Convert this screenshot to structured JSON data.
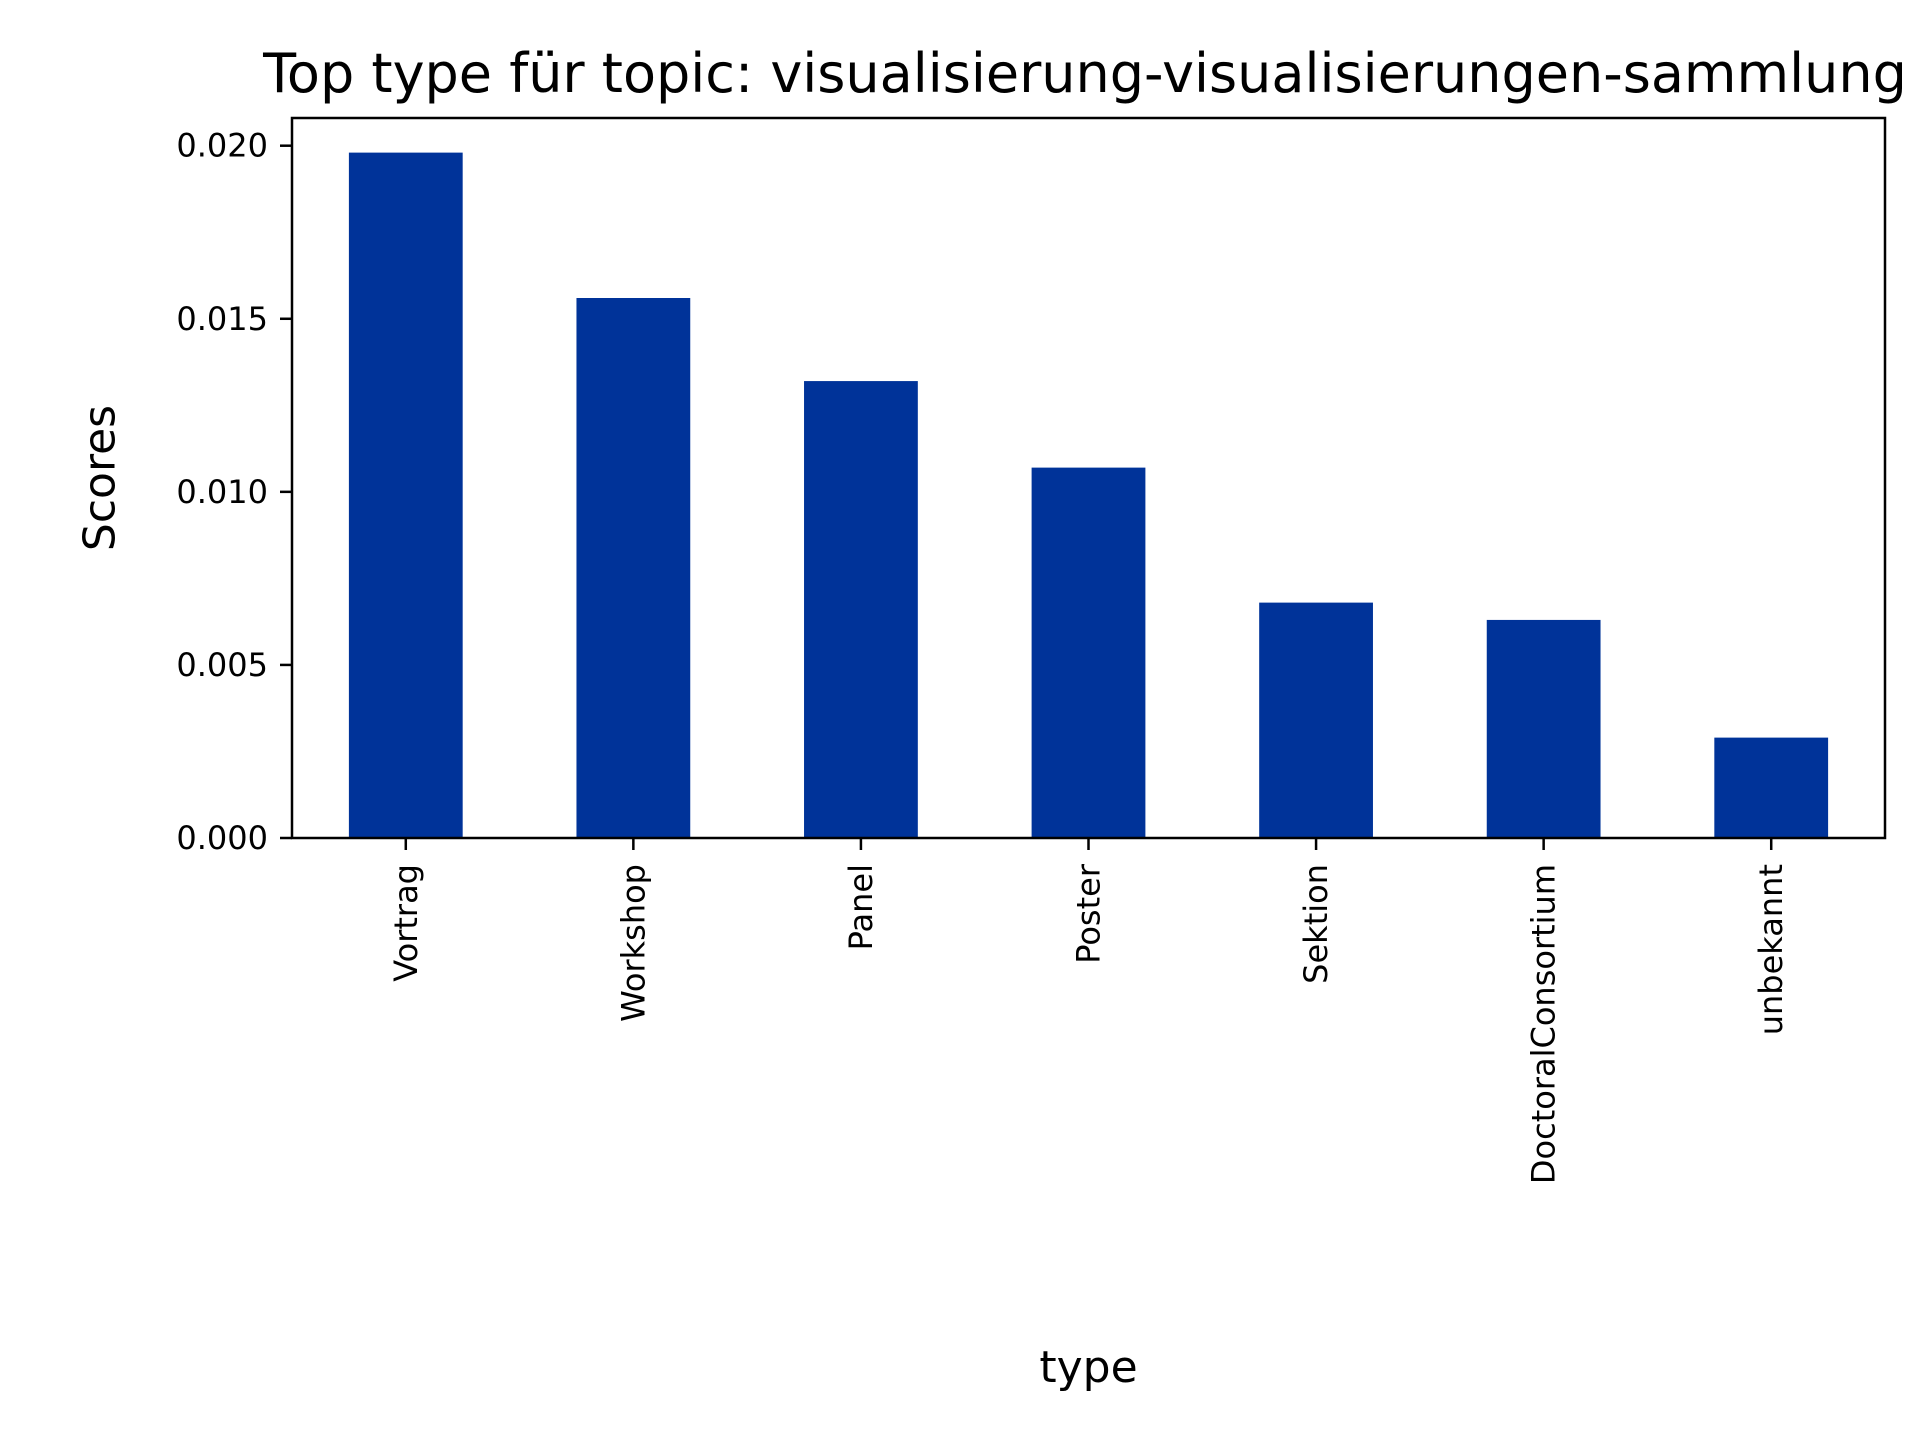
{
  "chart_data": {
    "type": "bar",
    "title": "Top type für topic: visualisierung-visualisierungen-sammlung",
    "xlabel": "type",
    "ylabel": "Scores",
    "categories": [
      "Vortrag",
      "Workshop",
      "Panel",
      "Poster",
      "Sektion",
      "DoctoralConsortium",
      "unbekannt"
    ],
    "values": [
      0.0198,
      0.0156,
      0.0132,
      0.0107,
      0.0068,
      0.0063,
      0.0029
    ],
    "ylim": [
      0,
      0.0208
    ],
    "yticks": [
      0.0,
      0.005,
      0.01,
      0.015,
      0.02
    ],
    "ytick_labels": [
      "0.000",
      "0.005",
      "0.010",
      "0.015",
      "0.020"
    ],
    "bar_color": "#003399",
    "grid": false,
    "legend": "none"
  }
}
